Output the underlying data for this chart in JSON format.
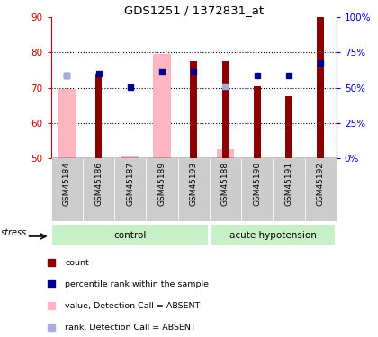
{
  "title": "GDS1251 / 1372831_at",
  "samples": [
    "GSM45184",
    "GSM45186",
    "GSM45187",
    "GSM45189",
    "GSM45193",
    "GSM45188",
    "GSM45190",
    "GSM45191",
    "GSM45192"
  ],
  "n_control": 5,
  "n_acute": 4,
  "ylim_left": [
    50,
    90
  ],
  "ylim_right": [
    0,
    100
  ],
  "yticks_left": [
    50,
    60,
    70,
    80,
    90
  ],
  "yticks_right": [
    0,
    25,
    50,
    75,
    100
  ],
  "ytick_labels_right": [
    "0%",
    "25%",
    "50%",
    "75%",
    "100%"
  ],
  "red_bars": [
    null,
    74.0,
    null,
    null,
    77.5,
    77.5,
    70.5,
    67.5,
    90.0
  ],
  "blue_dots": [
    73.5,
    74.0,
    70.2,
    74.5,
    74.5,
    null,
    73.5,
    73.5,
    77.0
  ],
  "pink_bars": [
    69.5,
    null,
    50.5,
    79.5,
    null,
    52.5,
    null,
    null,
    null
  ],
  "lavender_dots": [
    73.5,
    null,
    null,
    null,
    null,
    70.5,
    null,
    null,
    null
  ],
  "red_bar_color": "#8B0000",
  "blue_dot_color": "#00008B",
  "pink_bar_color": "#FFB6C1",
  "lavender_dot_color": "#AAAADD",
  "control_bg": "#C8F0C8",
  "acute_bg": "#C8F0C8",
  "group_label_control": "control",
  "group_label_acute": "acute hypotension",
  "stress_label": "stress",
  "left_axis_color": "#CC0000",
  "right_axis_color": "#0000CC",
  "sample_bg_color": "#CCCCCC",
  "legend_items": [
    [
      "#8B0000",
      "count"
    ],
    [
      "#00008B",
      "percentile rank within the sample"
    ],
    [
      "#FFB6C1",
      "value, Detection Call = ABSENT"
    ],
    [
      "#AAAADD",
      "rank, Detection Call = ABSENT"
    ]
  ]
}
